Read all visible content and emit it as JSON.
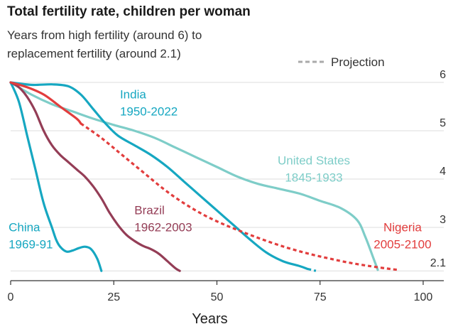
{
  "chart_data": {
    "type": "line",
    "title": "Total fertility rate, children per woman",
    "subtitle_lines": [
      "Years from high fertility (around 6) to",
      "replacement fertility (around 2.1)"
    ],
    "xlabel": "Years",
    "ylabel": "",
    "xlim": [
      0,
      105
    ],
    "ylim": [
      2.0,
      6.0
    ],
    "x_ticks": [
      "0",
      "25",
      "50",
      "75",
      "100"
    ],
    "y_ticks": [
      "6",
      "5",
      "4",
      "3",
      "2.1"
    ],
    "legend": {
      "label": "Projection",
      "placement": "top-right"
    },
    "series": [
      {
        "name": "China",
        "years": "1969-91",
        "color": "#16a7c1",
        "points": [
          [
            0,
            6.0
          ],
          [
            2,
            5.6
          ],
          [
            4,
            4.9
          ],
          [
            6,
            4.2
          ],
          [
            8,
            3.5
          ],
          [
            10,
            3.0
          ],
          [
            11,
            2.75
          ],
          [
            12,
            2.6
          ],
          [
            13.5,
            2.5
          ],
          [
            15,
            2.52
          ],
          [
            16.5,
            2.57
          ],
          [
            18,
            2.6
          ],
          [
            19.5,
            2.55
          ],
          [
            21,
            2.35
          ],
          [
            22,
            2.1
          ]
        ]
      },
      {
        "name": "Brazil",
        "years": "1962-2003",
        "color": "#943d56",
        "points": [
          [
            0,
            6.0
          ],
          [
            2,
            5.9
          ],
          [
            4,
            5.7
          ],
          [
            6,
            5.4
          ],
          [
            8,
            5.0
          ],
          [
            10,
            4.7
          ],
          [
            12,
            4.5
          ],
          [
            14,
            4.35
          ],
          [
            16,
            4.2
          ],
          [
            18,
            4.05
          ],
          [
            20,
            3.85
          ],
          [
            22,
            3.6
          ],
          [
            24,
            3.3
          ],
          [
            26,
            3.05
          ],
          [
            28,
            2.85
          ],
          [
            30,
            2.72
          ],
          [
            32,
            2.62
          ],
          [
            34,
            2.55
          ],
          [
            36,
            2.45
          ],
          [
            38,
            2.3
          ],
          [
            40,
            2.15
          ],
          [
            41,
            2.1
          ]
        ]
      },
      {
        "name": "India",
        "years": "1950-2022",
        "color": "#16a7c1",
        "points": [
          [
            0,
            6.0
          ],
          [
            5,
            5.95
          ],
          [
            10,
            5.96
          ],
          [
            14,
            5.92
          ],
          [
            17,
            5.75
          ],
          [
            20,
            5.45
          ],
          [
            23,
            5.15
          ],
          [
            26,
            4.9
          ],
          [
            30,
            4.7
          ],
          [
            34,
            4.5
          ],
          [
            38,
            4.25
          ],
          [
            42,
            3.95
          ],
          [
            46,
            3.65
          ],
          [
            50,
            3.35
          ],
          [
            54,
            3.05
          ],
          [
            58,
            2.75
          ],
          [
            62,
            2.48
          ],
          [
            66,
            2.3
          ],
          [
            70,
            2.2
          ],
          [
            72,
            2.14
          ]
        ],
        "projection": [
          [
            72,
            2.14
          ],
          [
            74,
            2.1
          ]
        ]
      },
      {
        "name": "United States",
        "years": "1845-1933",
        "color": "#7ecdc8",
        "points": [
          [
            0,
            6.0
          ],
          [
            5,
            5.75
          ],
          [
            10,
            5.55
          ],
          [
            15,
            5.4
          ],
          [
            20,
            5.25
          ],
          [
            25,
            5.12
          ],
          [
            30,
            5.0
          ],
          [
            35,
            4.85
          ],
          [
            40,
            4.65
          ],
          [
            45,
            4.45
          ],
          [
            50,
            4.25
          ],
          [
            55,
            4.05
          ],
          [
            60,
            3.9
          ],
          [
            65,
            3.8
          ],
          [
            70,
            3.7
          ],
          [
            75,
            3.55
          ],
          [
            80,
            3.4
          ],
          [
            84,
            3.15
          ],
          [
            86,
            2.8
          ],
          [
            88,
            2.35
          ],
          [
            89,
            2.12
          ]
        ]
      },
      {
        "name": "Nigeria",
        "years": "2005-2100",
        "color": "#e23d3d",
        "points": [
          [
            0,
            6.0
          ],
          [
            4,
            5.9
          ],
          [
            8,
            5.75
          ],
          [
            12,
            5.5
          ],
          [
            16,
            5.25
          ],
          [
            17,
            5.15
          ]
        ],
        "projection": [
          [
            17,
            5.15
          ],
          [
            22,
            4.85
          ],
          [
            27,
            4.5
          ],
          [
            32,
            4.15
          ],
          [
            37,
            3.8
          ],
          [
            42,
            3.5
          ],
          [
            47,
            3.25
          ],
          [
            52,
            3.05
          ],
          [
            57,
            2.88
          ],
          [
            62,
            2.72
          ],
          [
            67,
            2.58
          ],
          [
            72,
            2.46
          ],
          [
            77,
            2.36
          ],
          [
            82,
            2.27
          ],
          [
            87,
            2.2
          ],
          [
            92,
            2.14
          ],
          [
            94,
            2.12
          ]
        ]
      }
    ]
  }
}
